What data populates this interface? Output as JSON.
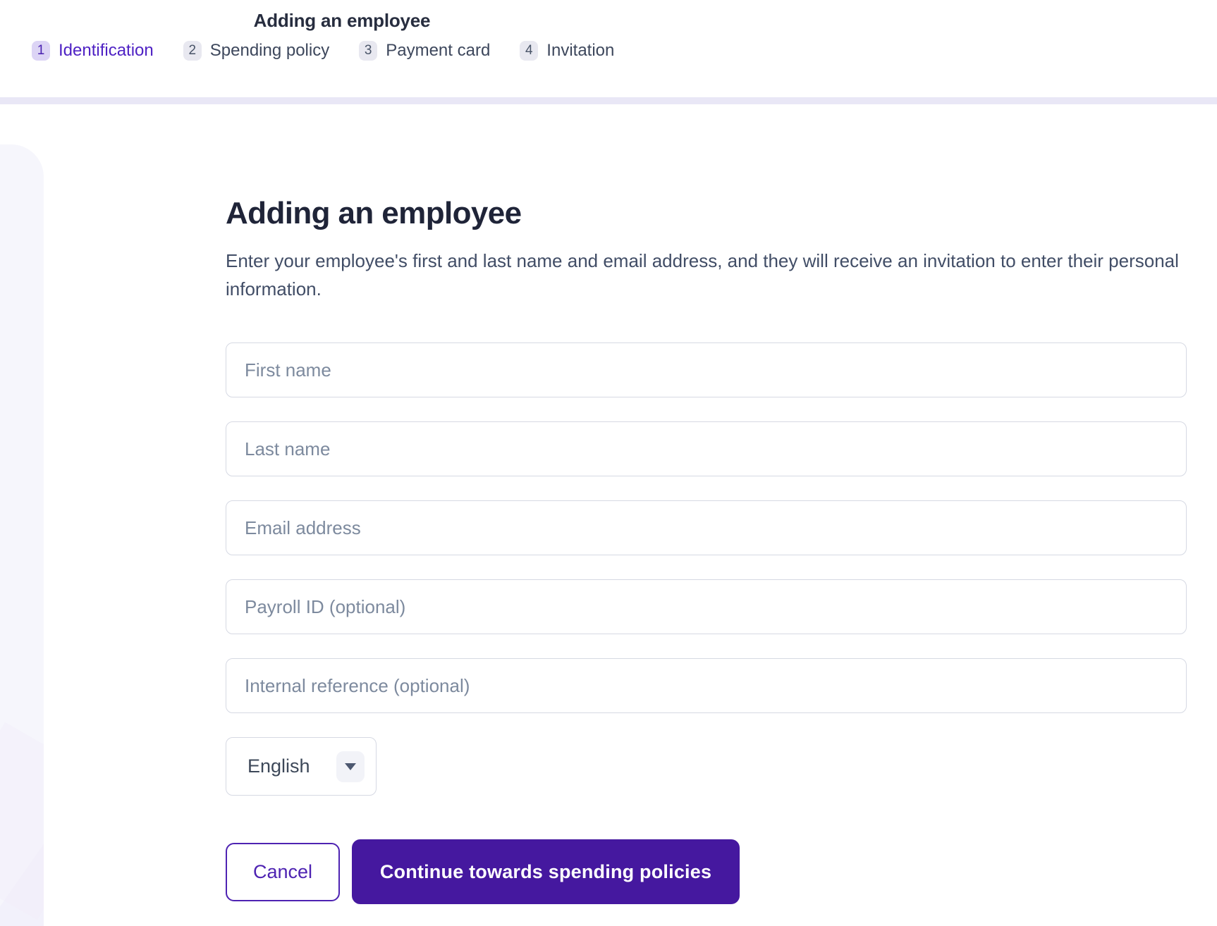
{
  "wizard": {
    "title": "Adding an employee",
    "steps": [
      {
        "number": "1",
        "label": "Identification",
        "active": true
      },
      {
        "number": "2",
        "label": "Spending policy",
        "active": false
      },
      {
        "number": "3",
        "label": "Payment card",
        "active": false
      },
      {
        "number": "4",
        "label": "Invitation",
        "active": false
      }
    ]
  },
  "form": {
    "heading": "Adding an employee",
    "description": "Enter your employee's first and last name and email address, and they will receive an invitation to enter their personal information.",
    "fields": [
      {
        "placeholder": "First name"
      },
      {
        "placeholder": "Last name"
      },
      {
        "placeholder": "Email address"
      },
      {
        "placeholder": "Payroll ID (optional)"
      },
      {
        "placeholder": "Internal reference (optional)"
      }
    ],
    "language_select": {
      "value": "English",
      "icon": "chevron-down-icon"
    },
    "buttons": {
      "cancel": "Cancel",
      "continue": "Continue towards spending policies"
    }
  },
  "colors": {
    "accent": "#4e23b2",
    "accent-deep": "#45189f",
    "step-active-bg": "#dcd4f5",
    "step-active-text": "#4a22b0",
    "step-label-active": "#4f22c4",
    "step-inactive-bg": "#e8e8f0",
    "step-inactive-text": "#495468",
    "step-label-inactive": "#3d475c",
    "divider": "#e9e7f6",
    "panel": "#f6f6fc",
    "heading": "#1f2438",
    "body-text": "#414d66",
    "placeholder": "#7d8a9e",
    "input-border": "#d6d9e3"
  }
}
